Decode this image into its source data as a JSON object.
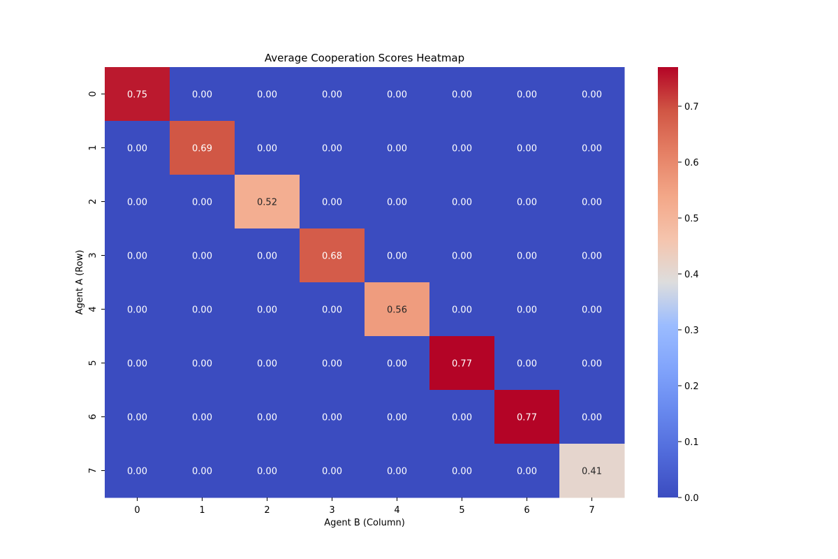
{
  "chart_data": {
    "type": "heatmap",
    "title": "Average Cooperation Scores Heatmap",
    "xlabel": "Agent B (Column)",
    "ylabel": "Agent A (Row)",
    "x_categories": [
      "0",
      "1",
      "2",
      "3",
      "4",
      "5",
      "6",
      "7"
    ],
    "y_categories": [
      "0",
      "1",
      "2",
      "3",
      "4",
      "5",
      "6",
      "7"
    ],
    "values": [
      [
        0.75,
        0.0,
        0.0,
        0.0,
        0.0,
        0.0,
        0.0,
        0.0
      ],
      [
        0.0,
        0.69,
        0.0,
        0.0,
        0.0,
        0.0,
        0.0,
        0.0
      ],
      [
        0.0,
        0.0,
        0.52,
        0.0,
        0.0,
        0.0,
        0.0,
        0.0
      ],
      [
        0.0,
        0.0,
        0.0,
        0.68,
        0.0,
        0.0,
        0.0,
        0.0
      ],
      [
        0.0,
        0.0,
        0.0,
        0.0,
        0.56,
        0.0,
        0.0,
        0.0
      ],
      [
        0.0,
        0.0,
        0.0,
        0.0,
        0.0,
        0.77,
        0.0,
        0.0
      ],
      [
        0.0,
        0.0,
        0.0,
        0.0,
        0.0,
        0.0,
        0.77,
        0.0
      ],
      [
        0.0,
        0.0,
        0.0,
        0.0,
        0.0,
        0.0,
        0.0,
        0.41
      ]
    ],
    "colormap": "coolwarm",
    "value_range": [
      0.0,
      0.77
    ],
    "colorbar_ticks": [
      "0.0",
      "0.1",
      "0.2",
      "0.3",
      "0.4",
      "0.5",
      "0.6",
      "0.7"
    ],
    "annotations": true,
    "annotation_format": "0.00"
  }
}
